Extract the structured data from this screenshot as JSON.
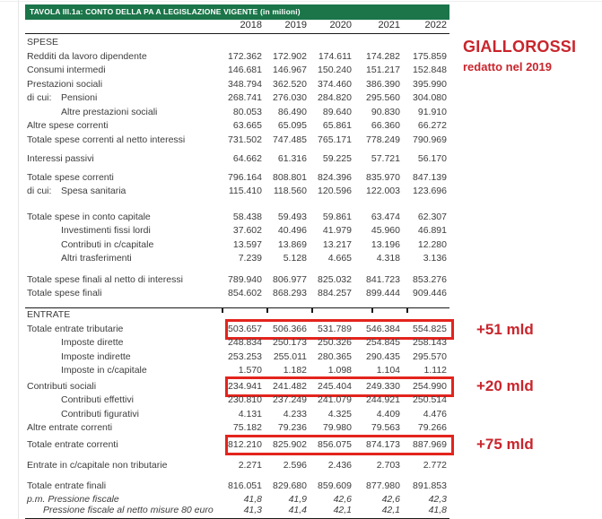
{
  "title_bar": {
    "text": "TAVOLA III.1a: CONTO DELLA PA A LEGISLAZIONE VIGENTE (in milioni)"
  },
  "columns": [
    "2018",
    "2019",
    "2020",
    "2021",
    "2022"
  ],
  "table": {
    "tick_positions": [
      247,
      297,
      347,
      414,
      453
    ],
    "rows": [
      {
        "label": "SPESE",
        "section": true
      },
      {
        "label": "Redditi da lavoro dipendente",
        "values": [
          "172.362",
          "172.902",
          "174.611",
          "174.282",
          "175.859"
        ]
      },
      {
        "label": "Consumi intermedi",
        "values": [
          "146.681",
          "146.967",
          "150.240",
          "151.217",
          "152.848"
        ]
      },
      {
        "label": "Prestazioni sociali",
        "values": [
          "348.794",
          "362.520",
          "374.460",
          "386.390",
          "395.990"
        ]
      },
      {
        "label": "Pensioni",
        "prefix": "di cui:",
        "indent": 1,
        "values": [
          "268.741",
          "276.030",
          "284.820",
          "295.560",
          "304.080"
        ]
      },
      {
        "label": "Altre prestazioni sociali",
        "indent": 1,
        "values": [
          "80.053",
          "86.490",
          "89.640",
          "90.830",
          "91.910"
        ]
      },
      {
        "label": "Altre spese correnti",
        "values": [
          "63.665",
          "65.095",
          "65.861",
          "66.360",
          "66.272"
        ]
      },
      {
        "label": "Totale spese correnti al netto interessi",
        "values": [
          "731.502",
          "747.485",
          "765.171",
          "778.249",
          "790.969"
        ]
      },
      {
        "label": "Interessi passivi",
        "gap": 6,
        "values": [
          "64.662",
          "61.316",
          "59.225",
          "57.721",
          "56.170"
        ]
      },
      {
        "label": "Totale spese correnti",
        "gap": 5,
        "values": [
          "796.164",
          "808.801",
          "824.396",
          "835.970",
          "847.139"
        ]
      },
      {
        "label": "Spesa sanitaria",
        "prefix": "di cui:",
        "indent": 1,
        "values": [
          "115.410",
          "118.560",
          "120.596",
          "122.003",
          "123.696"
        ]
      },
      {
        "label": "Totale spese in conto capitale",
        "gap": 13,
        "values": [
          "58.438",
          "59.493",
          "59.861",
          "63.474",
          "62.307"
        ]
      },
      {
        "label": "Investimenti fissi lordi",
        "indent": 1,
        "values": [
          "37.602",
          "40.496",
          "41.979",
          "45.960",
          "46.891"
        ]
      },
      {
        "label": "Contributi in c/capitale",
        "indent": 1,
        "values": [
          "13.597",
          "13.869",
          "13.217",
          "13.196",
          "12.280"
        ]
      },
      {
        "label": "Altri trasferimenti",
        "indent": 1,
        "values": [
          "7.239",
          "5.128",
          "4.665",
          "4.318",
          "3.136"
        ]
      },
      {
        "label": "Totale spese finali al netto di interessi",
        "gap": 8,
        "values": [
          "789.940",
          "806.977",
          "825.032",
          "841.723",
          "853.276"
        ]
      },
      {
        "label": "Totale spese finali",
        "values": [
          "854.602",
          "868.293",
          "884.257",
          "899.444",
          "909.446"
        ]
      },
      {
        "type": "rule"
      },
      {
        "label": "ENTRATE",
        "section": true
      },
      {
        "label": "Totale entrate tributarie",
        "highlight": true,
        "values": [
          "503.657",
          "506.366",
          "531.789",
          "546.384",
          "554.825"
        ]
      },
      {
        "label": "Imposte dirette",
        "indent": 1,
        "values": [
          "248.834",
          "250.173",
          "250.326",
          "254.845",
          "258.143"
        ]
      },
      {
        "label": "Imposte indirette",
        "indent": 1,
        "values": [
          "253.253",
          "255.011",
          "280.365",
          "290.435",
          "295.570"
        ]
      },
      {
        "label": "Imposte in c/capitale",
        "indent": 1,
        "values": [
          "1.570",
          "1.182",
          "1.098",
          "1.104",
          "1.112"
        ]
      },
      {
        "label": "Contributi sociali",
        "gap": 2,
        "highlight": true,
        "values": [
          "234.941",
          "241.482",
          "245.404",
          "249.330",
          "254.990"
        ]
      },
      {
        "label": "Contributi effettivi",
        "indent": 1,
        "values": [
          "230.810",
          "237.249",
          "241.079",
          "244.921",
          "250.514"
        ]
      },
      {
        "label": "Contributi figurativi",
        "indent": 1,
        "values": [
          "4.131",
          "4.233",
          "4.325",
          "4.409",
          "4.476"
        ]
      },
      {
        "label": "Altre entrate correnti",
        "values": [
          "75.182",
          "79.236",
          "79.980",
          "79.563",
          "79.266"
        ]
      },
      {
        "label": "Totale entrate correnti",
        "gap": 3,
        "highlight": true,
        "values": [
          "812.210",
          "825.902",
          "856.075",
          "874.173",
          "887.969"
        ]
      },
      {
        "label": "Entrate in c/capitale non tributarie",
        "gap": 8,
        "values": [
          "2.271",
          "2.596",
          "2.436",
          "2.703",
          "2.772"
        ]
      },
      {
        "label": "Totale entrate finali",
        "gap": 7,
        "values": [
          "816.051",
          "829.680",
          "859.609",
          "877.980",
          "891.853"
        ]
      },
      {
        "label": "p.m. Pressione fiscale",
        "italic": true,
        "values": [
          "41,8",
          "41,9",
          "42,6",
          "42,6",
          "42,3"
        ]
      },
      {
        "label": "Pressione fiscale al netto misure 80 euro",
        "italic": true,
        "indent": 2,
        "gap": -3.5,
        "values": [
          "41,3",
          "41,4",
          "42,1",
          "42,1",
          "41,8"
        ]
      },
      {
        "type": "rule",
        "final": true
      }
    ]
  },
  "annotations": {
    "title": "GIALLOROSSI",
    "subtitle": "redatto nel 2019",
    "deltas": [
      "+51 mld",
      "+20 mld",
      "+75 mld"
    ]
  },
  "colors": {
    "banner_green": "#1b7549",
    "rule_color": "#1a1a1a",
    "text_color": "#3c3c3c",
    "highlight_red": "#e3241d",
    "annotation_red": "#c9252c"
  }
}
